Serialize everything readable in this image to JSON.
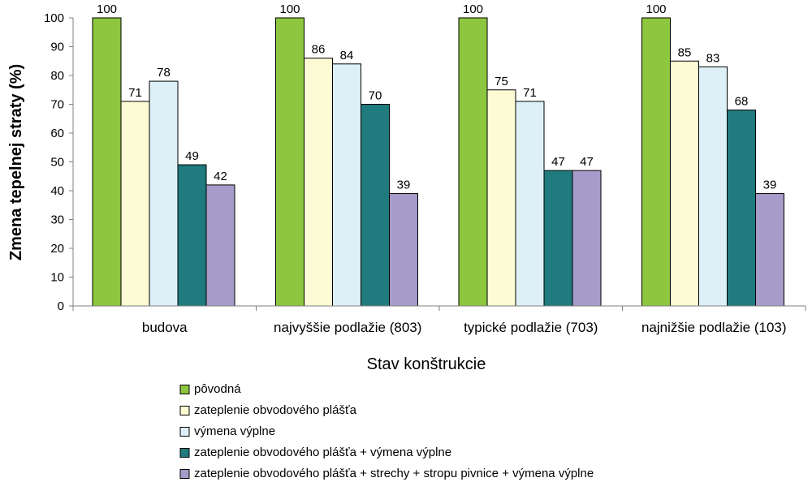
{
  "chart_data": {
    "type": "bar",
    "title": "",
    "xlabel": "Stav konštrukcie",
    "ylabel": "Zmena tepelnej straty (%)",
    "ylim": [
      0,
      100
    ],
    "yticks": [
      0,
      10,
      20,
      30,
      40,
      50,
      60,
      70,
      80,
      90,
      100
    ],
    "grid": false,
    "legend_position": "bottom",
    "categories": [
      "budova",
      "najvyššie podlažie (803)",
      "typické podlažie (703)",
      "najnižšie podlažie (103)"
    ],
    "series": [
      {
        "name": "pôvodná",
        "color": "#8dc63f",
        "values": [
          100,
          100,
          100,
          100
        ]
      },
      {
        "name": "zateplenie obvodového plášťa",
        "color": "#fdfbd4",
        "values": [
          71,
          86,
          75,
          85
        ]
      },
      {
        "name": "výmena výplne",
        "color": "#ddf0f7",
        "values": [
          78,
          84,
          71,
          83
        ]
      },
      {
        "name": "zateplenie obvodového plášťa + výmena výplne",
        "color": "#1f7b7d",
        "values": [
          49,
          70,
          47,
          68
        ]
      },
      {
        "name": "zateplenie obvodového plášťa + strechy + stropu pivnice + výmena výplne",
        "color": "#a69bc9",
        "values": [
          42,
          39,
          47,
          39
        ]
      }
    ]
  }
}
